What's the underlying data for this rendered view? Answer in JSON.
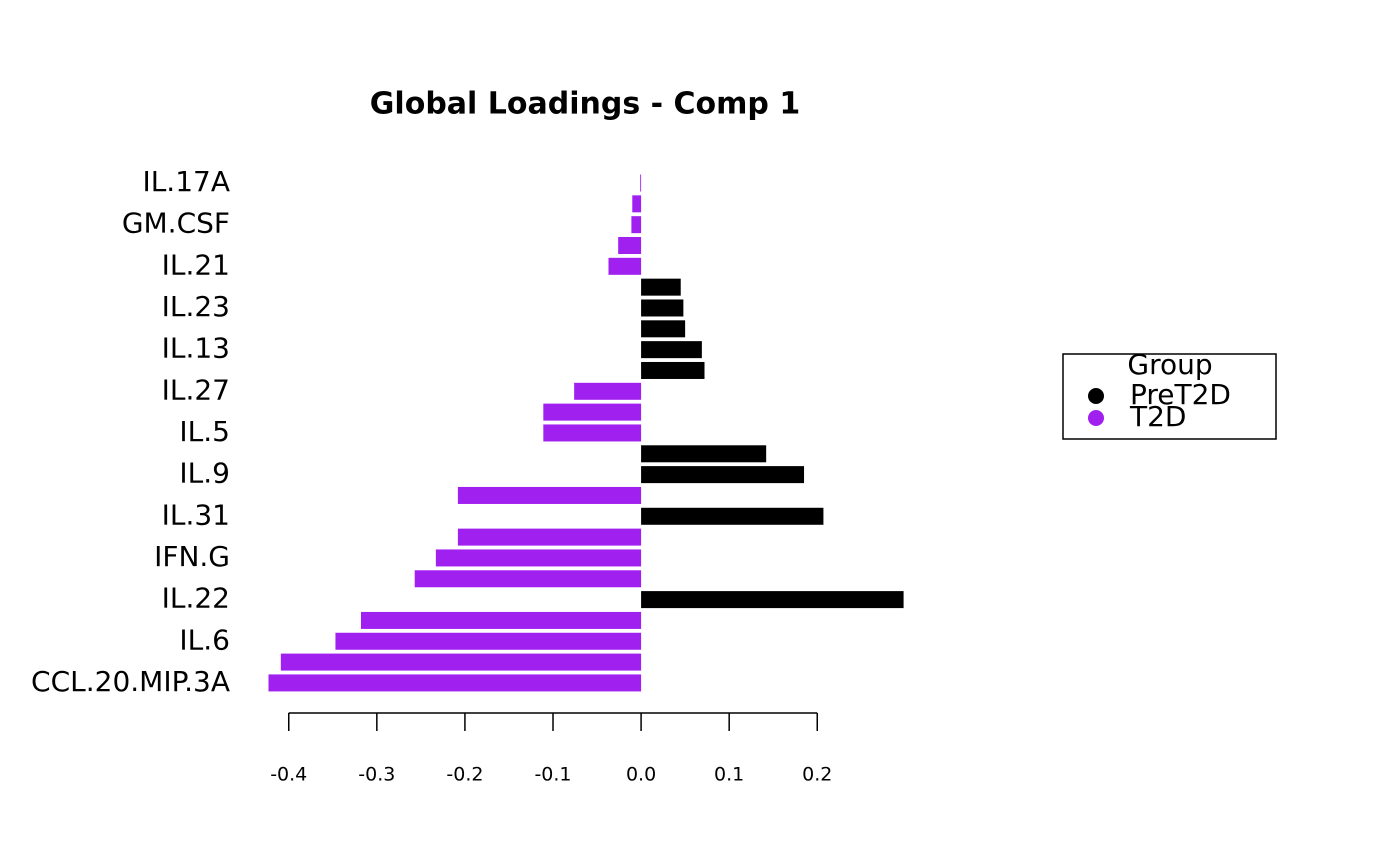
{
  "chart_data": {
    "type": "barh",
    "title": "Global Loadings - Comp 1",
    "categories": [
      "IL.17A",
      null,
      "GM.CSF",
      null,
      "IL.21",
      null,
      "IL.23",
      null,
      "IL.13",
      null,
      "IL.27",
      null,
      "IL.5",
      null,
      "IL.9",
      null,
      "IL.31",
      null,
      "IFN.G",
      null,
      "IL.22",
      null,
      "IL.6",
      null,
      "CCL.20.MIP.3A"
    ],
    "series": [
      {
        "name": "PreT2D",
        "color": "#000000",
        "values": [
          null,
          null,
          null,
          null,
          null,
          0.045,
          0.048,
          0.05,
          0.069,
          0.072,
          null,
          null,
          null,
          0.142,
          0.185,
          null,
          0.207,
          null,
          null,
          null,
          0.298,
          null,
          null,
          null,
          null
        ]
      },
      {
        "name": "T2D",
        "color": "#a020f0",
        "values": [
          -0.001,
          -0.01,
          -0.011,
          -0.026,
          -0.037,
          null,
          null,
          null,
          null,
          null,
          -0.076,
          -0.111,
          -0.111,
          null,
          null,
          -0.208,
          null,
          -0.208,
          -0.233,
          -0.257,
          null,
          -0.318,
          -0.347,
          -0.409,
          -0.423
        ]
      }
    ],
    "xlim": [
      -0.444,
      0.328
    ],
    "xticks": [
      -0.4,
      -0.3,
      -0.2,
      -0.1,
      {
        "value": 0,
        "label": "0.0"
      },
      0.1,
      0.2
    ],
    "legend_title": "Group",
    "legend": "right"
  }
}
